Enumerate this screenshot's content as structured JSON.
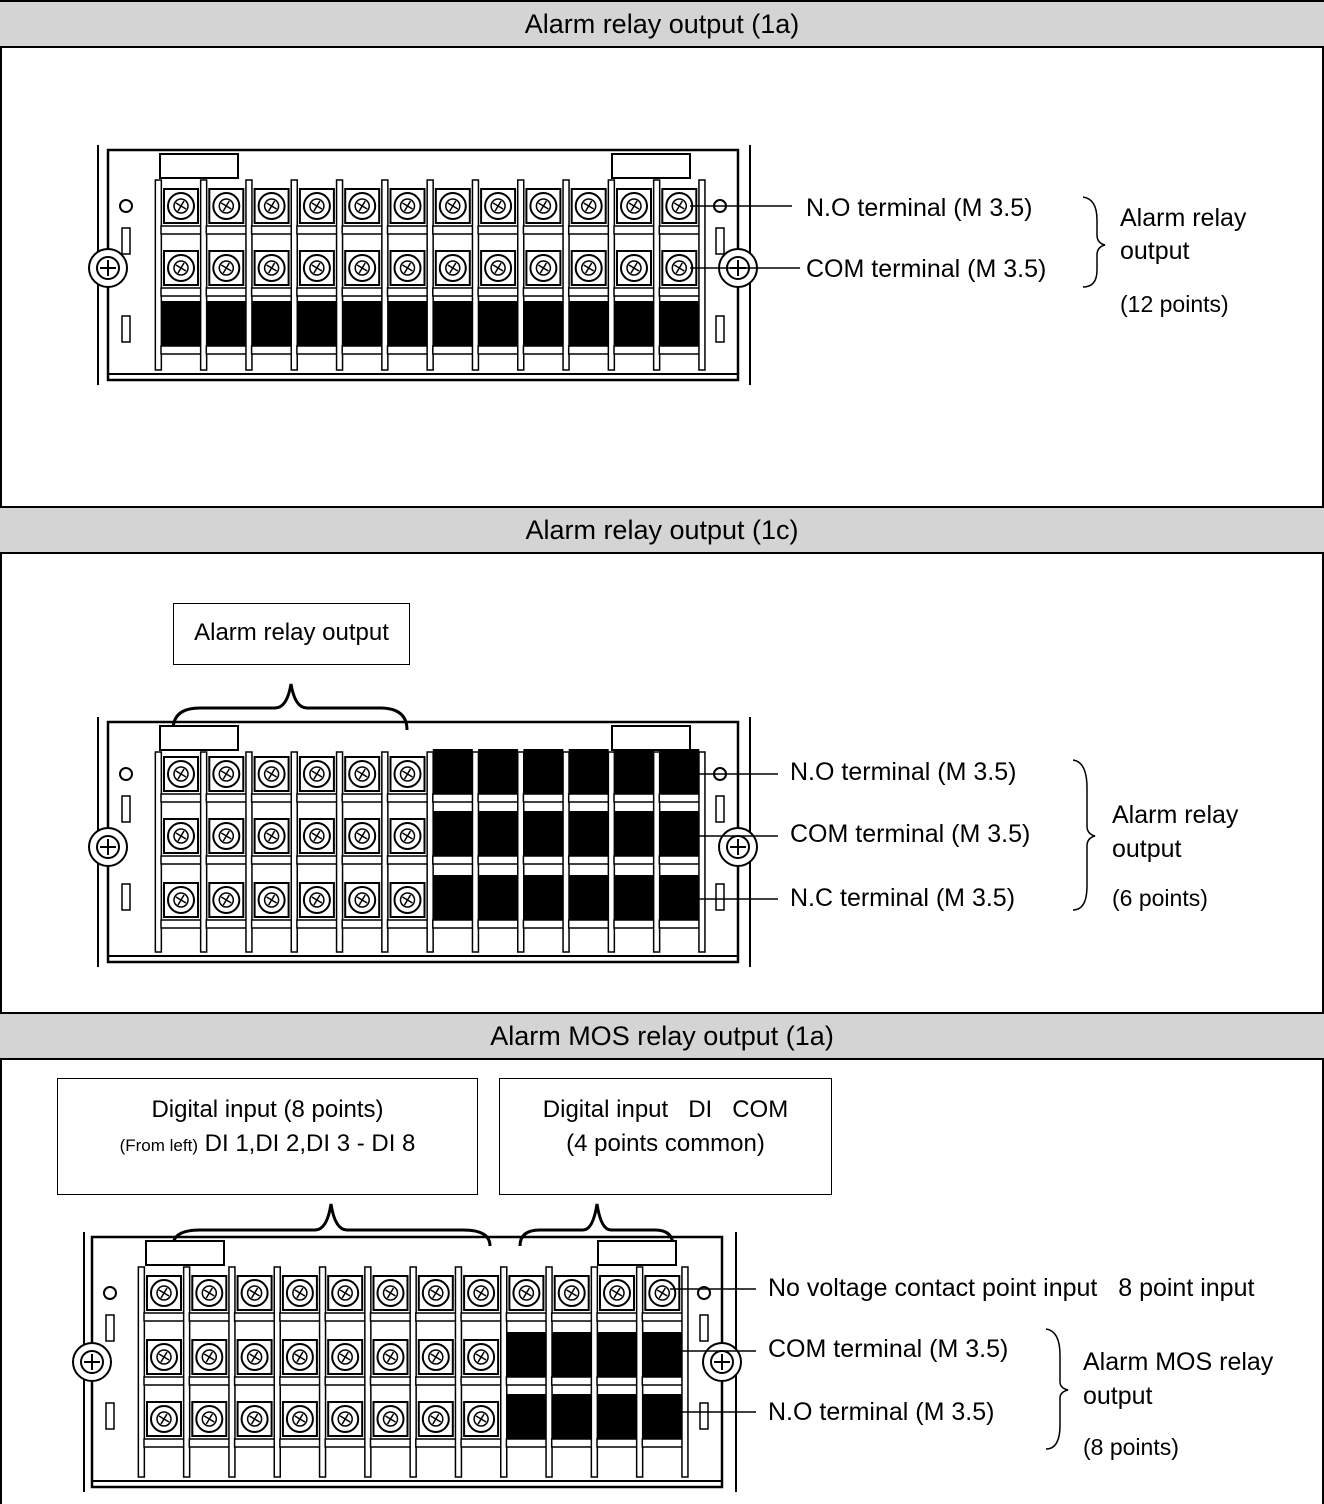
{
  "sections": [
    {
      "title": "Alarm relay output (1a)",
      "callouts": [
        "N.O terminal (M 3.5)",
        "COM terminal (M 3.5)"
      ],
      "group_label": [
        "Alarm relay",
        "output",
        "(12 points)"
      ]
    },
    {
      "title": "Alarm relay output (1c)",
      "boxed_label": "Alarm relay output",
      "callouts": [
        "N.O terminal (M 3.5)",
        "COM terminal (M 3.5)",
        "N.C terminal (M 3.5)"
      ],
      "group_label": [
        "Alarm relay",
        "output",
        "(6 points)"
      ]
    },
    {
      "title": "Alarm MOS relay output (1a)",
      "box_left": {
        "line1": "Digital input (8 points)",
        "prefix": "(From left)",
        "line2": "DI 1,DI 2,DI 3 - DI 8"
      },
      "box_right": {
        "line1": "Digital input   DI   COM",
        "line2": "(4 points common)"
      },
      "callouts": [
        "No voltage contact point input   8 point input",
        "COM terminal (M 3.5)",
        "N.O terminal (M 3.5)"
      ],
      "group_label": [
        "Alarm MOS relay",
        "output",
        "(8 points)"
      ]
    }
  ]
}
